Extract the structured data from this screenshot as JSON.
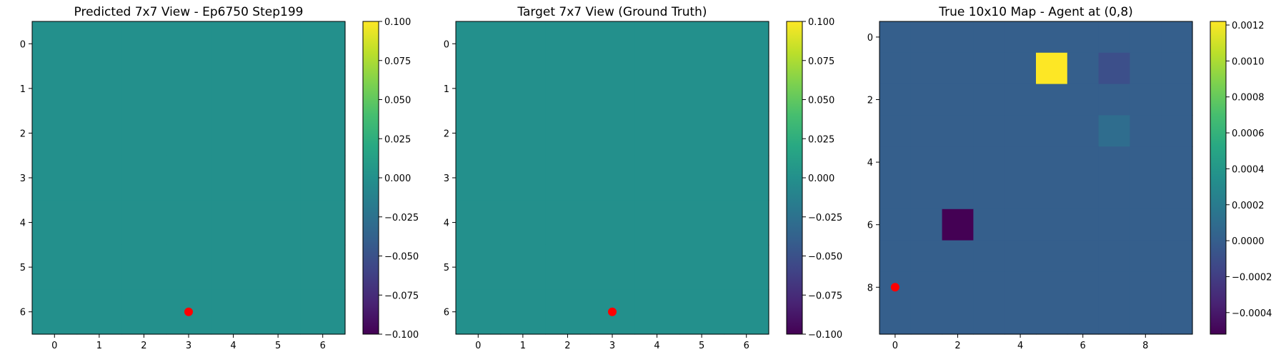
{
  "chart_data": [
    {
      "type": "heatmap",
      "title": "Predicted 7x7 View - Ep6750 Step199",
      "rows": 7,
      "cols": 7,
      "values": [
        [
          0,
          0,
          0,
          0,
          0,
          0,
          0
        ],
        [
          0,
          0,
          0,
          0,
          0,
          0,
          0
        ],
        [
          0,
          0,
          0,
          0,
          0,
          0,
          0
        ],
        [
          0,
          0,
          0,
          0,
          0,
          0,
          0
        ],
        [
          0,
          0,
          0,
          0,
          0,
          0,
          0
        ],
        [
          0,
          0,
          0,
          0,
          0,
          0,
          0
        ],
        [
          0,
          0,
          0,
          0,
          0,
          0,
          0
        ]
      ],
      "x_ticks": [
        0,
        1,
        2,
        3,
        4,
        5,
        6
      ],
      "y_ticks": [
        0,
        1,
        2,
        3,
        4,
        5,
        6
      ],
      "colorbar": {
        "range": [
          -0.1,
          0.1
        ],
        "ticks": [
          0.1,
          0.075,
          0.05,
          0.025,
          0.0,
          -0.025,
          -0.05,
          -0.075,
          -0.1
        ],
        "tick_labels": [
          "0.100",
          "0.075",
          "0.050",
          "0.025",
          "0.000",
          "−0.025",
          "−0.050",
          "−0.075",
          "−0.100"
        ]
      },
      "marker": {
        "x": 3,
        "y": 6,
        "color": "#ff0000"
      },
      "colormap": "viridis"
    },
    {
      "type": "heatmap",
      "title": "Target 7x7 View (Ground Truth)",
      "rows": 7,
      "cols": 7,
      "values": [
        [
          0,
          0,
          0,
          0,
          0,
          0,
          0
        ],
        [
          0,
          0,
          0,
          0,
          0,
          0,
          0
        ],
        [
          0,
          0,
          0,
          0,
          0,
          0,
          0
        ],
        [
          0,
          0,
          0,
          0,
          0,
          0,
          0
        ],
        [
          0,
          0,
          0,
          0,
          0,
          0,
          0
        ],
        [
          0,
          0,
          0,
          0,
          0,
          0,
          0
        ],
        [
          0,
          0,
          0,
          0,
          0,
          0,
          0
        ]
      ],
      "x_ticks": [
        0,
        1,
        2,
        3,
        4,
        5,
        6
      ],
      "y_ticks": [
        0,
        1,
        2,
        3,
        4,
        5,
        6
      ],
      "colorbar": {
        "range": [
          -0.1,
          0.1
        ],
        "ticks": [
          0.1,
          0.075,
          0.05,
          0.025,
          0.0,
          -0.025,
          -0.05,
          -0.075,
          -0.1
        ],
        "tick_labels": [
          "0.100",
          "0.075",
          "0.050",
          "0.025",
          "0.000",
          "−0.025",
          "−0.050",
          "−0.075",
          "−0.100"
        ]
      },
      "marker": {
        "x": 3,
        "y": 6,
        "color": "#ff0000"
      },
      "colormap": "viridis"
    },
    {
      "type": "heatmap",
      "title": "True 10x10 Map - Agent at (0,8)",
      "rows": 10,
      "cols": 10,
      "values": [
        [
          0,
          0,
          0,
          0,
          0,
          0,
          0,
          0,
          0,
          0
        ],
        [
          0,
          0,
          0,
          0,
          0,
          0.00122,
          0,
          -0.0001,
          0,
          0
        ],
        [
          0,
          0,
          0,
          0,
          0,
          0,
          0,
          0,
          0,
          0
        ],
        [
          0,
          0,
          0,
          0,
          0,
          0,
          0,
          0.0001,
          0,
          0
        ],
        [
          0,
          0,
          0,
          0,
          0,
          0,
          0,
          0,
          0,
          0
        ],
        [
          0,
          0,
          0,
          0,
          0,
          0,
          0,
          0,
          0,
          0
        ],
        [
          0,
          0,
          -0.00052,
          0,
          0,
          0,
          0,
          0,
          0,
          0
        ],
        [
          0,
          0,
          0,
          0,
          0,
          0,
          0,
          0,
          0,
          0
        ],
        [
          0,
          0,
          0,
          0,
          0,
          0,
          0,
          0,
          0,
          0
        ],
        [
          0,
          0,
          0,
          0,
          0,
          0,
          0,
          0,
          0,
          0
        ]
      ],
      "x_ticks": [
        0,
        2,
        4,
        6,
        8
      ],
      "y_ticks": [
        0,
        2,
        4,
        6,
        8
      ],
      "colorbar": {
        "range": [
          -0.00052,
          0.00122
        ],
        "ticks": [
          0.0012,
          0.001,
          0.0008,
          0.0006,
          0.0004,
          0.0002,
          0.0,
          -0.0002,
          -0.0004
        ],
        "tick_labels": [
          "0.0012",
          "0.0010",
          "0.0008",
          "0.0006",
          "0.0004",
          "0.0002",
          "0.0000",
          "−0.0002",
          "−0.0004"
        ]
      },
      "marker": {
        "x": 0,
        "y": 8,
        "color": "#ff0000"
      },
      "colormap": "viridis"
    }
  ]
}
